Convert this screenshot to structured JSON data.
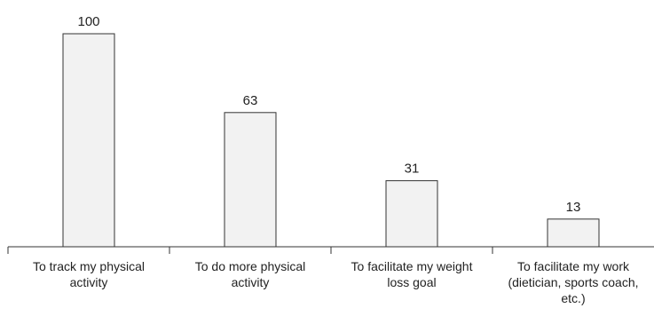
{
  "chart_data": {
    "type": "bar",
    "categories": [
      [
        "To track my physical",
        "activity"
      ],
      [
        "To do more physical",
        "activity"
      ],
      [
        "To facilitate my weight",
        "loss goal"
      ],
      [
        "To facilitate my work",
        "(dietician, sports coach,",
        "etc.)"
      ]
    ],
    "values": [
      100,
      63,
      31,
      13
    ],
    "data_labels": [
      "100",
      "63",
      "31",
      "13"
    ],
    "title": "",
    "xlabel": "",
    "ylabel": "",
    "ylim": [
      0,
      100
    ],
    "grid": false,
    "legend": "none",
    "colors": {
      "bar_fill": "#f2f2f2",
      "bar_stroke": "#333333",
      "text": "#222222"
    }
  }
}
